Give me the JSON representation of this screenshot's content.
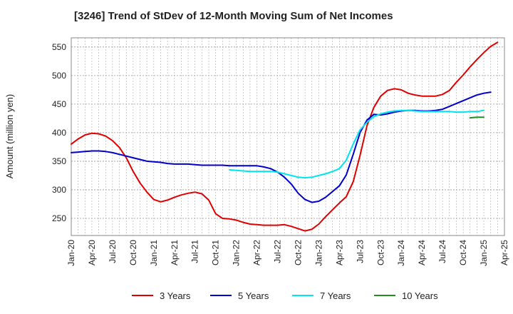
{
  "chart_data": {
    "type": "line",
    "title": "[3246]  Trend of StDev of 12-Month Moving Sum of Net Incomes",
    "ylabel": "Amount (million yen)",
    "xlabel": "",
    "ylim": [
      220,
      566
    ],
    "yticks": [
      250,
      300,
      350,
      400,
      450,
      500,
      550
    ],
    "x_start": "2020-01",
    "x_end": "2025-04",
    "xticks": [
      "Jan-20",
      "Apr-20",
      "Jul-20",
      "Oct-20",
      "Jan-21",
      "Apr-21",
      "Jul-21",
      "Oct-21",
      "Jan-22",
      "Apr-22",
      "Jul-22",
      "Oct-22",
      "Jan-23",
      "Apr-23",
      "Jul-23",
      "Oct-23",
      "Jan-24",
      "Apr-24",
      "Jul-24",
      "Oct-24",
      "Jan-25",
      "Apr-25"
    ],
    "grid": true,
    "legend_position": "bottom",
    "series": [
      {
        "name": "3 Years",
        "color": "#e00000",
        "start": "2020-01",
        "values": [
          380,
          389,
          396,
          399,
          398,
          394,
          386,
          374,
          356,
          332,
          312,
          296,
          283,
          279,
          282,
          287,
          291,
          294,
          296,
          293,
          282,
          258,
          250,
          249,
          247,
          243,
          240,
          239,
          238,
          238,
          238,
          239,
          236,
          232,
          228,
          231,
          240,
          253,
          265,
          277,
          288,
          314,
          360,
          412,
          444,
          464,
          474,
          477,
          475,
          469,
          466,
          464,
          464,
          464,
          467,
          474,
          488,
          501,
          515,
          528,
          540,
          551,
          558
        ]
      },
      {
        "name": "5 Years",
        "color": "#0000cc",
        "start": "2020-01",
        "values": [
          365,
          366,
          367,
          368,
          368,
          367,
          365,
          362,
          359,
          356,
          353,
          350,
          349,
          348,
          346,
          345,
          345,
          345,
          344,
          343,
          343,
          343,
          343,
          342,
          342,
          342,
          342,
          342,
          340,
          337,
          331,
          322,
          310,
          294,
          283,
          278,
          280,
          287,
          297,
          307,
          326,
          362,
          400,
          422,
          432,
          431,
          433,
          436,
          438,
          439,
          439,
          438,
          438,
          439,
          441,
          446,
          451,
          456,
          461,
          466,
          469,
          471
        ]
      },
      {
        "name": "7 Years",
        "color": "#00e5ee",
        "start": "2021-12",
        "values": [
          335,
          334,
          333,
          332,
          332,
          332,
          332,
          331,
          328,
          325,
          322,
          321,
          322,
          325,
          328,
          332,
          337,
          352,
          380,
          405,
          418,
          428,
          433,
          436,
          438,
          439,
          439,
          438,
          437,
          437,
          437,
          437,
          437,
          436,
          436,
          437,
          437,
          439
        ]
      },
      {
        "name": "10 Years",
        "color": "#228b22",
        "start": "2024-11",
        "values": [
          426,
          427,
          427
        ]
      }
    ]
  }
}
